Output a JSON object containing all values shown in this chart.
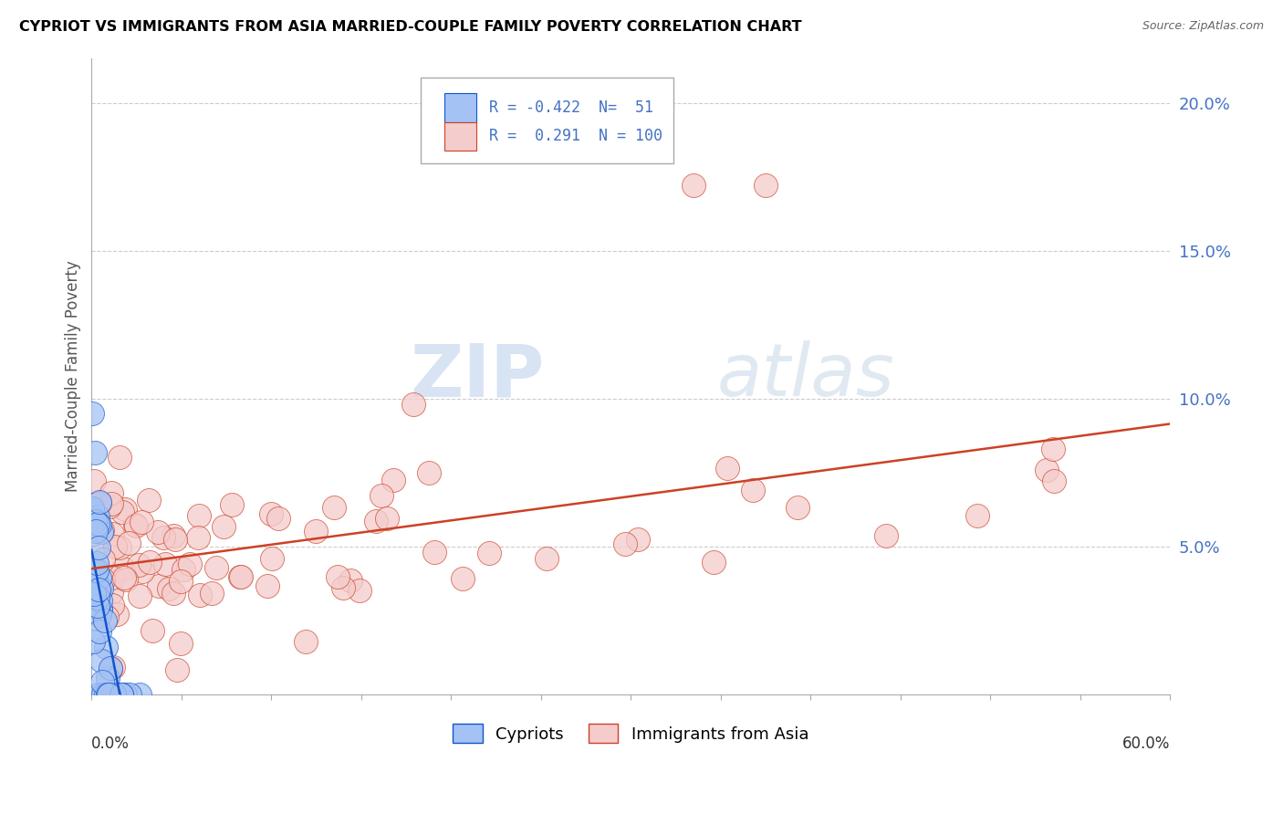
{
  "title": "CYPRIOT VS IMMIGRANTS FROM ASIA MARRIED-COUPLE FAMILY POVERTY CORRELATION CHART",
  "source": "Source: ZipAtlas.com",
  "ylabel": "Married-Couple Family Poverty",
  "xmin": 0.0,
  "xmax": 0.6,
  "ymin": 0.0,
  "ymax": 0.215,
  "yticks": [
    0.05,
    0.1,
    0.15,
    0.2
  ],
  "ytick_labels": [
    "5.0%",
    "10.0%",
    "15.0%",
    "20.0%"
  ],
  "cypriot_color": "#a4c2f4",
  "cypriot_edge": "#1155cc",
  "cypriot_line_color": "#1155cc",
  "asia_color": "#f4cccc",
  "asia_edge": "#cc4125",
  "asia_line_color": "#cc4125",
  "cypriot_R": -0.422,
  "cypriot_N": 51,
  "asia_R": 0.291,
  "asia_N": 100,
  "legend_label_1": "Cypriots",
  "legend_label_2": "Immigrants from Asia",
  "watermark_zip": "ZIP",
  "watermark_atlas": "atlas",
  "bg_color": "#ffffff",
  "grid_color": "#cccccc",
  "title_color": "#000000",
  "source_color": "#666666",
  "ylabel_color": "#555555",
  "ytick_color": "#4472c4",
  "legend_R_color": "#4472c4",
  "legend_N_color": "#4472c4"
}
